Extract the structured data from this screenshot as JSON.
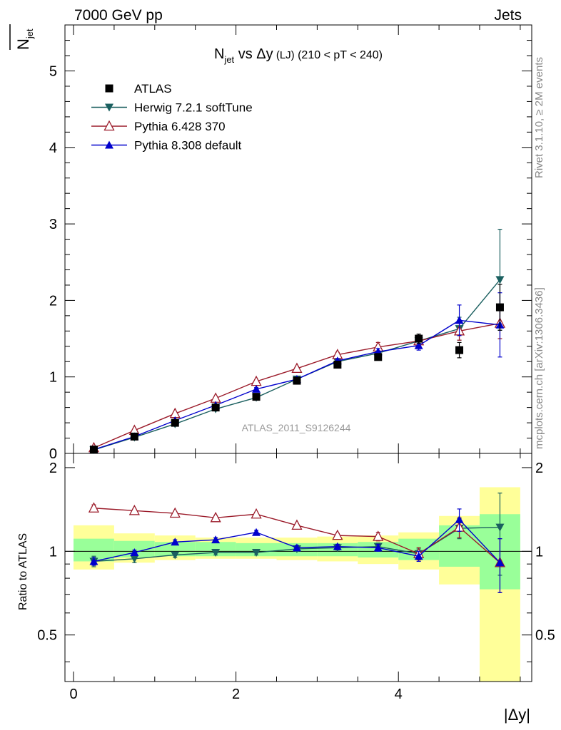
{
  "header": {
    "left": "7000 GeV pp",
    "right": "Jets"
  },
  "side_labels": {
    "top": "Rivet 3.1.10, ≥ 2M events",
    "bottom": "mcplots.cern.ch [arXiv:1306.3436]"
  },
  "chart_data": {
    "type": "scatter",
    "title": {
      "main": "N",
      "main_sub": "jet",
      "vs": " vs Δy",
      "small": " (LJ)",
      "range": " (210 < pT < 240)"
    },
    "analysis_id": "ATLAS_2011_S9126244",
    "ylabel": {
      "base": "N",
      "sub": "jet"
    },
    "ratio_ylabel": "Ratio to ATLAS",
    "xlabel": "|Δy|",
    "xlim": [
      -0.1,
      5.55
    ],
    "ylim": [
      0,
      5.6
    ],
    "ratio_ylim": [
      0.34,
      2.25
    ],
    "x_ticks": [
      "0",
      "2",
      "4"
    ],
    "y_ticks": [
      "0",
      "1",
      "2",
      "3",
      "4",
      "5"
    ],
    "ratio_ticks": [
      "0.5",
      "1",
      "2"
    ],
    "legend_position": "top-left",
    "x": [
      0.25,
      0.75,
      1.25,
      1.75,
      2.25,
      2.75,
      3.25,
      3.75,
      4.25,
      4.75,
      5.25
    ],
    "series": [
      {
        "name": "ATLAS",
        "color": "#000000",
        "marker": "square",
        "values": [
          0.05,
          0.22,
          0.4,
          0.6,
          0.74,
          0.95,
          1.16,
          1.26,
          1.5,
          1.35,
          1.91
        ],
        "errors": [
          0.005,
          0.01,
          0.015,
          0.02,
          0.02,
          0.03,
          0.03,
          0.04,
          0.06,
          0.1,
          0.3
        ]
      },
      {
        "name": "Herwig 7.2.1 softTune",
        "color": "#1a5f5f",
        "marker": "triangle-down",
        "values": [
          0.046,
          0.21,
          0.385,
          0.58,
          0.73,
          0.97,
          1.2,
          1.31,
          1.47,
          1.63,
          2.27
        ],
        "errors": [
          0.003,
          0.008,
          0.012,
          0.015,
          0.02,
          0.025,
          0.03,
          0.04,
          0.06,
          0.15,
          0.66
        ],
        "ratio": [
          0.92,
          0.94,
          0.97,
          0.99,
          0.99,
          1.02,
          1.03,
          1.04,
          0.98,
          1.21,
          1.22
        ],
        "ratio_err": [
          0.04,
          0.03,
          0.02,
          0.02,
          0.02,
          0.02,
          0.02,
          0.03,
          0.04,
          0.1,
          0.4
        ]
      },
      {
        "name": "Pythia 6.428 370",
        "color": "#9b1b2a",
        "marker": "triangle-open",
        "values": [
          0.072,
          0.3,
          0.52,
          0.72,
          0.94,
          1.11,
          1.29,
          1.39,
          1.47,
          1.6,
          1.7
        ],
        "errors": [
          0.004,
          0.01,
          0.012,
          0.015,
          0.02,
          0.025,
          0.03,
          0.06,
          0.06,
          0.12,
          0.2
        ],
        "ratio": [
          1.43,
          1.4,
          1.37,
          1.32,
          1.36,
          1.24,
          1.14,
          1.13,
          0.98,
          1.22,
          0.91
        ],
        "ratio_err": [
          0.04,
          0.02,
          0.02,
          0.02,
          0.02,
          0.02,
          0.02,
          0.04,
          0.05,
          0.1,
          0.2
        ]
      },
      {
        "name": "Pythia 8.308 default",
        "color": "#0000cc",
        "marker": "triangle-up",
        "values": [
          0.05,
          0.22,
          0.43,
          0.63,
          0.84,
          0.97,
          1.21,
          1.33,
          1.41,
          1.74,
          1.68
        ],
        "errors": [
          0.003,
          0.008,
          0.012,
          0.015,
          0.02,
          0.025,
          0.03,
          0.04,
          0.06,
          0.2,
          0.42
        ],
        "ratio": [
          0.92,
          0.99,
          1.08,
          1.1,
          1.17,
          1.03,
          1.04,
          1.03,
          0.96,
          1.3,
          0.91
        ],
        "ratio_err": [
          0.03,
          0.02,
          0.02,
          0.02,
          0.02,
          0.02,
          0.02,
          0.03,
          0.04,
          0.12,
          0.2
        ]
      }
    ],
    "ratio_bands": {
      "outer_color": "#ffff99",
      "inner_color": "#99ff99",
      "edges": [
        0,
        0.5,
        1,
        1.5,
        2,
        2.5,
        3,
        3.5,
        4,
        4.5,
        5,
        5.5
      ],
      "outer": [
        [
          0.86,
          1.24
        ],
        [
          0.91,
          1.16
        ],
        [
          0.93,
          1.14
        ],
        [
          0.94,
          1.12
        ],
        [
          0.94,
          1.12
        ],
        [
          0.93,
          1.12
        ],
        [
          0.92,
          1.13
        ],
        [
          0.9,
          1.14
        ],
        [
          0.86,
          1.17
        ],
        [
          0.76,
          1.34
        ],
        [
          0.33,
          1.7
        ]
      ],
      "inner": [
        [
          0.92,
          1.11
        ],
        [
          0.95,
          1.09
        ],
        [
          0.96,
          1.08
        ],
        [
          0.96,
          1.08
        ],
        [
          0.96,
          1.07
        ],
        [
          0.96,
          1.07
        ],
        [
          0.96,
          1.07
        ],
        [
          0.95,
          1.08
        ],
        [
          0.93,
          1.11
        ],
        [
          0.88,
          1.24
        ],
        [
          0.73,
          1.36
        ]
      ]
    }
  }
}
